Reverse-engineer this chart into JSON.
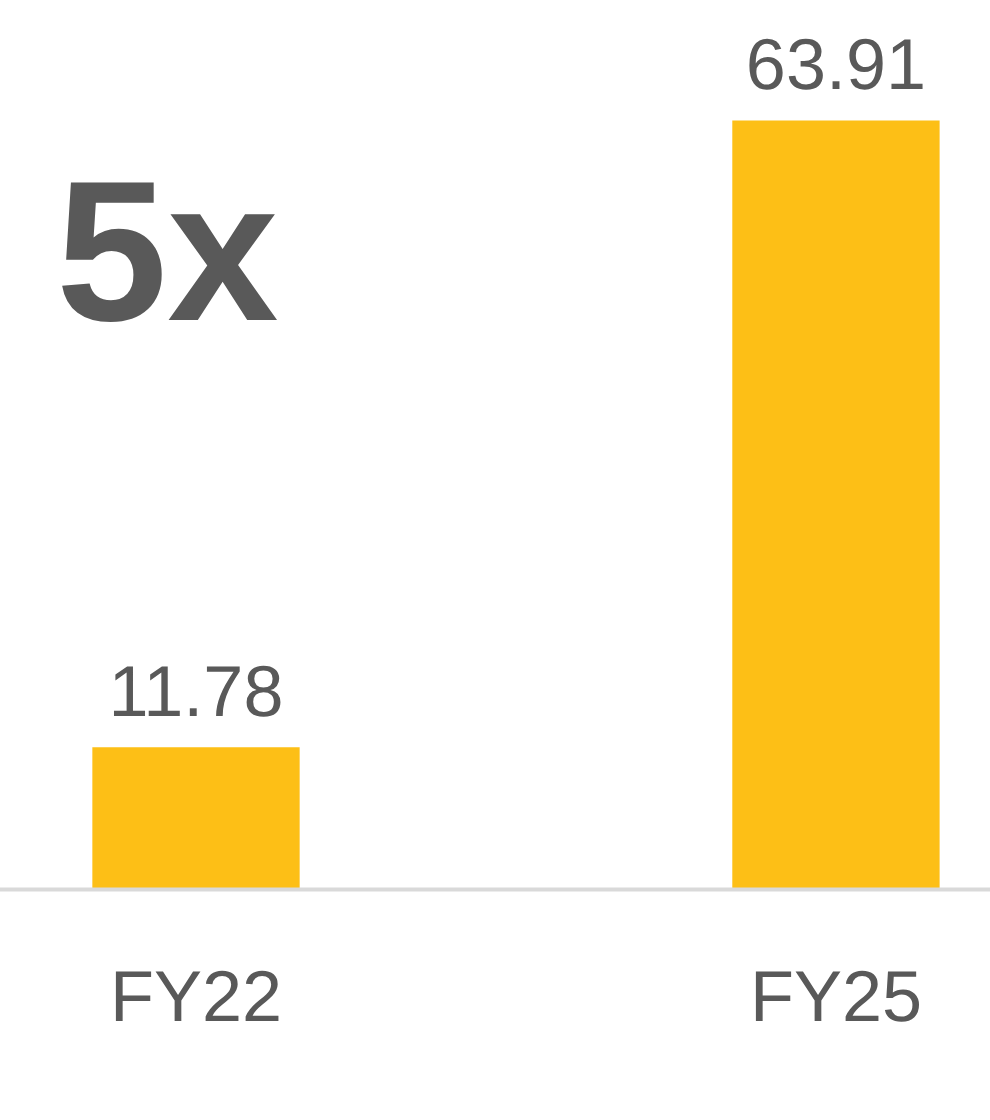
{
  "chart_data": {
    "type": "bar",
    "categories": [
      "FY22",
      "FY25"
    ],
    "values": [
      11.78,
      63.91
    ],
    "color": "#fdbf16",
    "data_labels": true,
    "annotations": [
      "5x"
    ],
    "grid": false,
    "legend": false
  }
}
